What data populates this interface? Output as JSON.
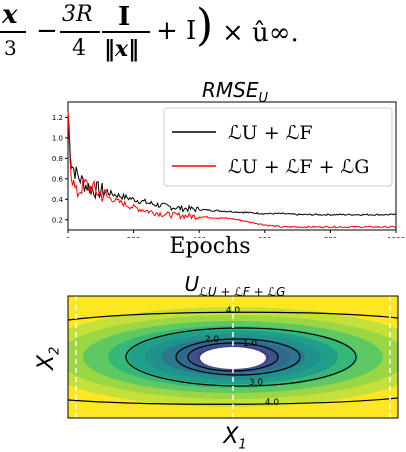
{
  "equation": {
    "x_vec": "x",
    "three": "3",
    "minus": "−",
    "three_r": "3R",
    "four": "4",
    "bold_i": "I",
    "norm_x": "‖x‖",
    "plus_i": "+ I",
    "close_paren": ")",
    "times_u": "× û∞."
  },
  "chart_data": [
    {
      "type": "line",
      "title": "RMSE_U",
      "xlabel": "Epochs",
      "ylabel": "",
      "xlim": [
        0,
        1000
      ],
      "ylim": [
        0.1,
        1.35
      ],
      "x_ticks": [
        "0",
        "200",
        "400",
        "600",
        "800",
        "1000"
      ],
      "y_ticks": [
        "0.2",
        "0.4",
        "0.6",
        "0.8",
        "1.0",
        "1.2"
      ],
      "legend_placement": "top-right",
      "series": [
        {
          "name": "ℒU + ℒF",
          "color": "#000000",
          "x": [
            0,
            10,
            25,
            50,
            75,
            100,
            150,
            200,
            250,
            300,
            350,
            400,
            450,
            500,
            550,
            600,
            650,
            700,
            800,
            900,
            1000
          ],
          "values": [
            1.25,
            0.75,
            0.65,
            0.55,
            0.5,
            0.48,
            0.44,
            0.4,
            0.36,
            0.33,
            0.31,
            0.3,
            0.29,
            0.28,
            0.27,
            0.26,
            0.26,
            0.25,
            0.25,
            0.25,
            0.25
          ]
        },
        {
          "name": "ℒU + ℒF + ℒG",
          "color": "#ff0000",
          "x": [
            0,
            10,
            25,
            50,
            75,
            100,
            150,
            200,
            250,
            300,
            350,
            400,
            450,
            500,
            550,
            600,
            650,
            700,
            800,
            900,
            1000
          ],
          "values": [
            1.2,
            0.65,
            0.45,
            0.55,
            0.5,
            0.45,
            0.38,
            0.32,
            0.28,
            0.25,
            0.24,
            0.23,
            0.22,
            0.21,
            0.18,
            0.15,
            0.13,
            0.13,
            0.13,
            0.13,
            0.13
          ]
        }
      ]
    },
    {
      "type": "heatmap",
      "title": "U_{ℒU + ℒF + ℒG}",
      "xlabel": "X1",
      "ylabel": "X2",
      "contour_labels": [
        "4.0",
        "2.0",
        "1.0",
        "3.0",
        "4.0"
      ],
      "colormap": [
        "#440154",
        "#3b528b",
        "#21918c",
        "#5ec962",
        "#fde725"
      ]
    }
  ],
  "labels": {
    "rmse_title_main": "RMSE",
    "rmse_title_sub": "U",
    "field_title_main": "U",
    "field_title_sub": "ℒU + ℒF + ℒG",
    "x1": "X",
    "x1_sub": "1",
    "x2": "X",
    "x2_sub": "2"
  }
}
